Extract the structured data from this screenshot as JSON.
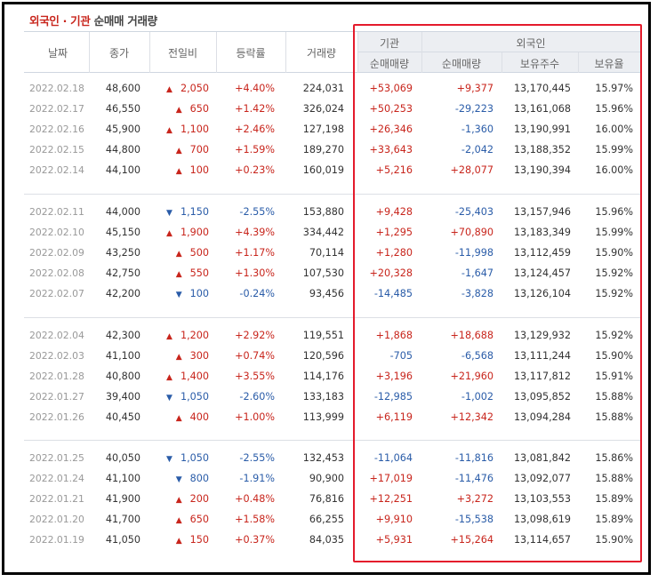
{
  "title": {
    "part1": "외국인 · 기관",
    "part2": "순매매 거래량"
  },
  "headers": {
    "date": "날짜",
    "close": "종가",
    "change": "전일비",
    "rate": "등락률",
    "volume": "거래량",
    "institution": "기관",
    "foreign": "외국인",
    "inst_net": "순매매량",
    "foreign_net": "순매매량",
    "foreign_holding": "보유주수",
    "foreign_ratio": "보유율"
  },
  "colors": {
    "up": "#c8251c",
    "down": "#2a5ca8",
    "highlight": "#e41b2c"
  },
  "groups": [
    [
      {
        "date": "2022.02.18",
        "close": "48,600",
        "dir": "up",
        "change": "2,050",
        "rate": "+4.40%",
        "volume": "224,031",
        "inst": "+53,069",
        "fnet": "+9,377",
        "fhold": "13,170,445",
        "frate": "15.97%"
      },
      {
        "date": "2022.02.17",
        "close": "46,550",
        "dir": "up",
        "change": "650",
        "rate": "+1.42%",
        "volume": "326,024",
        "inst": "+50,253",
        "fnet": "-29,223",
        "fhold": "13,161,068",
        "frate": "15.96%"
      },
      {
        "date": "2022.02.16",
        "close": "45,900",
        "dir": "up",
        "change": "1,100",
        "rate": "+2.46%",
        "volume": "127,198",
        "inst": "+26,346",
        "fnet": "-1,360",
        "fhold": "13,190,991",
        "frate": "16.00%"
      },
      {
        "date": "2022.02.15",
        "close": "44,800",
        "dir": "up",
        "change": "700",
        "rate": "+1.59%",
        "volume": "189,270",
        "inst": "+33,643",
        "fnet": "-2,042",
        "fhold": "13,188,352",
        "frate": "15.99%"
      },
      {
        "date": "2022.02.14",
        "close": "44,100",
        "dir": "up",
        "change": "100",
        "rate": "+0.23%",
        "volume": "160,019",
        "inst": "+5,216",
        "fnet": "+28,077",
        "fhold": "13,190,394",
        "frate": "16.00%"
      }
    ],
    [
      {
        "date": "2022.02.11",
        "close": "44,000",
        "dir": "down",
        "change": "1,150",
        "rate": "-2.55%",
        "volume": "153,880",
        "inst": "+9,428",
        "fnet": "-25,403",
        "fhold": "13,157,946",
        "frate": "15.96%"
      },
      {
        "date": "2022.02.10",
        "close": "45,150",
        "dir": "up",
        "change": "1,900",
        "rate": "+4.39%",
        "volume": "334,442",
        "inst": "+1,295",
        "fnet": "+70,890",
        "fhold": "13,183,349",
        "frate": "15.99%"
      },
      {
        "date": "2022.02.09",
        "close": "43,250",
        "dir": "up",
        "change": "500",
        "rate": "+1.17%",
        "volume": "70,114",
        "inst": "+1,280",
        "fnet": "-11,998",
        "fhold": "13,112,459",
        "frate": "15.90%"
      },
      {
        "date": "2022.02.08",
        "close": "42,750",
        "dir": "up",
        "change": "550",
        "rate": "+1.30%",
        "volume": "107,530",
        "inst": "+20,328",
        "fnet": "-1,647",
        "fhold": "13,124,457",
        "frate": "15.92%"
      },
      {
        "date": "2022.02.07",
        "close": "42,200",
        "dir": "down",
        "change": "100",
        "rate": "-0.24%",
        "volume": "93,456",
        "inst": "-14,485",
        "fnet": "-3,828",
        "fhold": "13,126,104",
        "frate": "15.92%"
      }
    ],
    [
      {
        "date": "2022.02.04",
        "close": "42,300",
        "dir": "up",
        "change": "1,200",
        "rate": "+2.92%",
        "volume": "119,551",
        "inst": "+1,868",
        "fnet": "+18,688",
        "fhold": "13,129,932",
        "frate": "15.92%"
      },
      {
        "date": "2022.02.03",
        "close": "41,100",
        "dir": "up",
        "change": "300",
        "rate": "+0.74%",
        "volume": "120,596",
        "inst": "-705",
        "fnet": "-6,568",
        "fhold": "13,111,244",
        "frate": "15.90%"
      },
      {
        "date": "2022.01.28",
        "close": "40,800",
        "dir": "up",
        "change": "1,400",
        "rate": "+3.55%",
        "volume": "114,176",
        "inst": "+3,196",
        "fnet": "+21,960",
        "fhold": "13,117,812",
        "frate": "15.91%"
      },
      {
        "date": "2022.01.27",
        "close": "39,400",
        "dir": "down",
        "change": "1,050",
        "rate": "-2.60%",
        "volume": "133,183",
        "inst": "-12,985",
        "fnet": "-1,002",
        "fhold": "13,095,852",
        "frate": "15.88%"
      },
      {
        "date": "2022.01.26",
        "close": "40,450",
        "dir": "up",
        "change": "400",
        "rate": "+1.00%",
        "volume": "113,999",
        "inst": "+6,119",
        "fnet": "+12,342",
        "fhold": "13,094,284",
        "frate": "15.88%"
      }
    ],
    [
      {
        "date": "2022.01.25",
        "close": "40,050",
        "dir": "down",
        "change": "1,050",
        "rate": "-2.55%",
        "volume": "132,453",
        "inst": "-11,064",
        "fnet": "-11,816",
        "fhold": "13,081,842",
        "frate": "15.86%"
      },
      {
        "date": "2022.01.24",
        "close": "41,100",
        "dir": "down",
        "change": "800",
        "rate": "-1.91%",
        "volume": "90,900",
        "inst": "+17,019",
        "fnet": "-11,476",
        "fhold": "13,092,077",
        "frate": "15.88%"
      },
      {
        "date": "2022.01.21",
        "close": "41,900",
        "dir": "up",
        "change": "200",
        "rate": "+0.48%",
        "volume": "76,816",
        "inst": "+12,251",
        "fnet": "+3,272",
        "fhold": "13,103,553",
        "frate": "15.89%"
      },
      {
        "date": "2022.01.20",
        "close": "41,700",
        "dir": "up",
        "change": "650",
        "rate": "+1.58%",
        "volume": "66,255",
        "inst": "+9,910",
        "fnet": "-15,538",
        "fhold": "13,098,619",
        "frate": "15.89%"
      },
      {
        "date": "2022.01.19",
        "close": "41,050",
        "dir": "up",
        "change": "150",
        "rate": "+0.37%",
        "volume": "84,035",
        "inst": "+5,931",
        "fnet": "+15,264",
        "fhold": "13,114,657",
        "frate": "15.90%"
      }
    ]
  ]
}
